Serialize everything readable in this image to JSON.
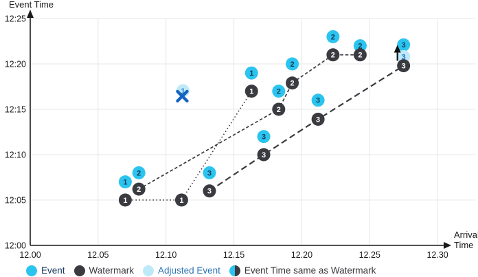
{
  "chart_data": {
    "type": "scatter",
    "title": "",
    "x_axis": {
      "title_line1": "Arrival",
      "title_line2": "Time",
      "tick_labels": [
        "12.00",
        "12.05",
        "12.10",
        "12.15",
        "12.20",
        "12.25",
        "12.30"
      ],
      "tick_minutes": [
        0,
        5,
        10,
        15,
        20,
        25,
        30
      ],
      "range": "12.00 to 12.30"
    },
    "y_axis": {
      "title": "Event Time",
      "tick_labels": [
        "12:00",
        "12:05",
        "12:10",
        "12:15",
        "12:20",
        "12:25"
      ],
      "tick_minutes": [
        0,
        5,
        10,
        15,
        20,
        25
      ],
      "range": "12:00 to 12:25"
    },
    "grid": "on",
    "events": [
      {
        "arrival": 7.0,
        "time": 7,
        "label": "1"
      },
      {
        "arrival": 8.0,
        "time": 8,
        "label": "2"
      },
      {
        "arrival": 13.2,
        "time": 8,
        "label": "3"
      },
      {
        "arrival": 16.3,
        "time": 19,
        "label": "1"
      },
      {
        "arrival": 17.2,
        "time": 12,
        "label": "3"
      },
      {
        "arrival": 18.3,
        "time": 17,
        "label": "2"
      },
      {
        "arrival": 19.3,
        "time": 20,
        "label": "2"
      },
      {
        "arrival": 21.2,
        "time": 16,
        "label": "3"
      },
      {
        "arrival": 22.3,
        "time": 23,
        "label": "2"
      },
      {
        "arrival": 24.3,
        "time": 22,
        "label": "2"
      },
      {
        "arrival": 27.5,
        "time": 22.1,
        "label": "3"
      }
    ],
    "watermarks": [
      {
        "arrival": 7.0,
        "time": 5,
        "label": "1"
      },
      {
        "arrival": 11.15,
        "time": 5,
        "label": "1"
      },
      {
        "arrival": 16.3,
        "time": 17,
        "label": "1"
      },
      {
        "arrival": 8.0,
        "time": 6.2,
        "label": "2"
      },
      {
        "arrival": 18.3,
        "time": 15,
        "label": "2"
      },
      {
        "arrival": 19.3,
        "time": 17.9,
        "label": "2"
      },
      {
        "arrival": 22.3,
        "time": 21,
        "label": "2"
      },
      {
        "arrival": 24.3,
        "time": 21,
        "label": "2"
      },
      {
        "arrival": 13.2,
        "time": 6,
        "label": "3"
      },
      {
        "arrival": 17.2,
        "time": 10,
        "label": "3"
      },
      {
        "arrival": 21.2,
        "time": 13.9,
        "label": "3"
      },
      {
        "arrival": 27.5,
        "time": 19.8,
        "label": "3"
      }
    ],
    "adjusted_events": [
      {
        "arrival": 11.25,
        "time": 17.05,
        "label": "1",
        "marker": "dropped-x"
      },
      {
        "arrival": 27.5,
        "time": 20.8,
        "label": "3",
        "marker": "adjusted-up-arrow"
      }
    ],
    "watermark_lines": [
      {
        "style": "dotted",
        "points": [
          [
            7.0,
            5
          ],
          [
            11.15,
            5
          ],
          [
            16.3,
            17
          ]
        ]
      },
      {
        "style": "dashed",
        "points": [
          [
            8.0,
            6.2
          ],
          [
            18.3,
            15
          ],
          [
            19.3,
            17.9
          ],
          [
            22.3,
            21
          ],
          [
            24.3,
            21
          ]
        ]
      },
      {
        "style": "long-dash",
        "points": [
          [
            13.2,
            6
          ],
          [
            17.2,
            10
          ],
          [
            21.2,
            13.9
          ],
          [
            27.5,
            19.8
          ]
        ]
      }
    ],
    "colors": {
      "event": "#2BC4EE",
      "event_number_text": "#123A5E",
      "watermark": "#3A3A41",
      "watermark_number_text": "#FFFFFF",
      "adjusted": "#BEE9F9",
      "adjusted_number_text": "#2878BE",
      "event_legend_text": "#17365D",
      "adjusted_legend_text": "#2E75B6",
      "x_marker": "#1565C0",
      "arrow_marker": "#111111",
      "grid": "#E7E7E7",
      "axis": "#1A1A1A",
      "tick_text": "#1A1A1A"
    }
  },
  "legend": {
    "items": [
      {
        "label": "Event",
        "type": "event"
      },
      {
        "label": "Watermark",
        "type": "watermark"
      },
      {
        "label": "Adjusted Event",
        "type": "adjusted"
      },
      {
        "label": "Event Time same as Watermark",
        "type": "event-same-as-watermark"
      }
    ]
  }
}
